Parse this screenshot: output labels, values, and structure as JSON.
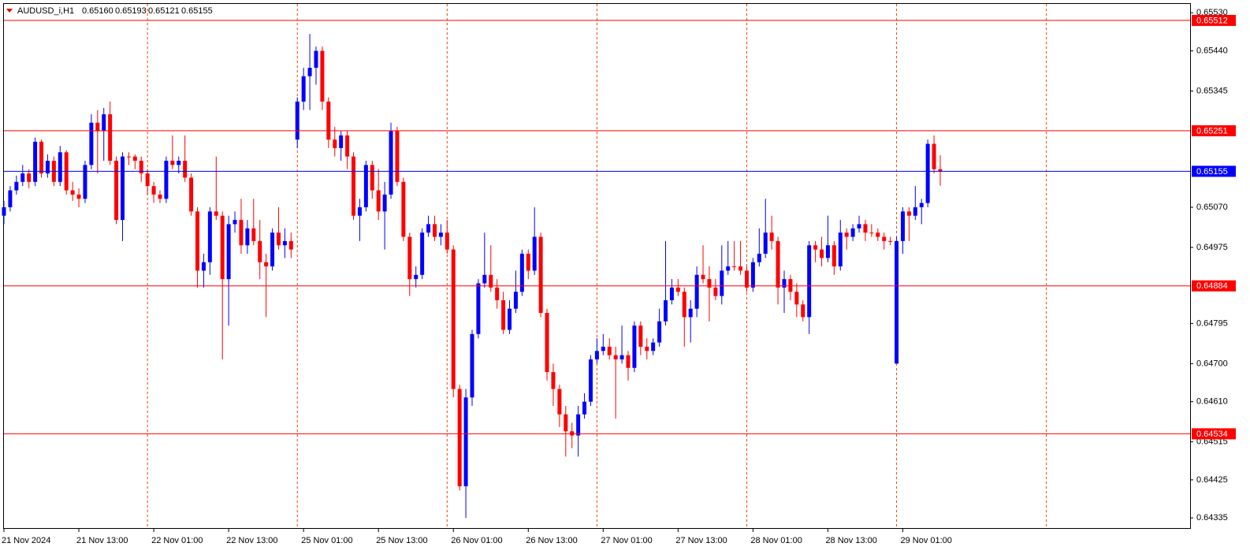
{
  "header": {
    "symbol": "AUDUSD_i,H1",
    "ohlc": [
      {
        "value": 0.6516,
        "label": "0.65160"
      },
      0.65193,
      0.65121,
      0.65155
    ]
  },
  "chart_data": {
    "type": "candlestick",
    "up_color": "#0000ff",
    "down_color": "#ff0000",
    "ylim": [
      0.64311,
      0.65551
    ],
    "yticks": [
      {
        "value": 0.6553,
        "label": "0.65530"
      },
      {
        "value": 0.6544,
        "label": "0.65440"
      },
      0.65345,
      {
        "value": 0.6507,
        "label": "0.65070"
      },
      0.64975,
      0.64795,
      {
        "value": 0.647,
        "label": "0.64700"
      },
      {
        "value": 0.6461,
        "label": "0.64610"
      },
      0.64515,
      0.64425,
      0.64335
    ],
    "levels": [
      {
        "value": 0.65512,
        "color": "#ff0000"
      },
      {
        "value": 0.65251,
        "color": "#ff0000"
      },
      {
        "value": 0.64884,
        "color": "#ff0000"
      },
      {
        "value": 0.64534,
        "color": "#ff0000"
      },
      {
        "value": 0.65155,
        "color": "#0000ff"
      }
    ],
    "categories": [
      "21 Nov 2024",
      null,
      null,
      null,
      null,
      null,
      null,
      null,
      null,
      null,
      null,
      null,
      "21 Nov 13:00",
      null,
      null,
      null,
      null,
      null,
      null,
      null,
      null,
      null,
      null,
      null,
      "22 Nov 01:00",
      null,
      null,
      null,
      null,
      null,
      null,
      null,
      null,
      null,
      null,
      null,
      "22 Nov 13:00",
      null,
      null,
      null,
      null,
      null,
      null,
      null,
      null,
      null,
      null,
      null,
      "25 Nov 01:00",
      null,
      null,
      null,
      null,
      null,
      null,
      null,
      null,
      null,
      null,
      null,
      "25 Nov 13:00",
      null,
      null,
      null,
      null,
      null,
      null,
      null,
      null,
      null,
      null,
      null,
      "26 Nov 01:00",
      null,
      null,
      null,
      null,
      null,
      null,
      null,
      null,
      null,
      null,
      null,
      "26 Nov 13:00",
      null,
      null,
      null,
      null,
      null,
      null,
      null,
      null,
      null,
      null,
      null,
      "27 Nov 01:00",
      null,
      null,
      null,
      null,
      null,
      null,
      null,
      null,
      null,
      null,
      null,
      "27 Nov 13:00",
      null,
      null,
      null,
      null,
      null,
      null,
      null,
      null,
      null,
      null,
      null,
      "28 Nov 01:00",
      null,
      null,
      null,
      null,
      null,
      null,
      null,
      null,
      null,
      null,
      null,
      "28 Nov 13:00",
      null,
      null,
      null,
      null,
      null,
      null,
      null,
      null,
      null,
      null,
      null,
      "29 Nov 01:00",
      null,
      null,
      null,
      null,
      null,
      null
    ],
    "ohlc": [
      [
        0.6505,
        0.65085,
        0.6503,
        0.6507
      ],
      [
        0.6507,
        0.6512,
        0.6506,
        0.6511
      ],
      [
        0.6511,
        0.65145,
        0.651,
        0.6513
      ],
      [
        0.6513,
        0.6517,
        0.6512,
        0.6515
      ],
      [
        0.6515,
        0.6516,
        0.65115,
        0.6513
      ],
      [
        0.6513,
        0.65235,
        0.6512,
        0.65225
      ],
      [
        0.65225,
        0.6523,
        0.6514,
        0.6515
      ],
      [
        0.6515,
        0.65195,
        0.6514,
        0.6518
      ],
      [
        0.6518,
        0.6519,
        0.6512,
        0.6513
      ],
      [
        0.6513,
        0.65215,
        0.6512,
        0.652
      ],
      [
        0.652,
        0.65205,
        0.651,
        0.6511
      ],
      [
        0.6511,
        0.6513,
        0.65085,
        0.651
      ],
      [
        0.651,
        0.65115,
        0.6507,
        0.6509
      ],
      [
        0.6509,
        0.6518,
        0.6508,
        0.6517
      ],
      [
        0.6517,
        0.6529,
        0.6516,
        0.6527
      ],
      [
        0.6527,
        0.653,
        0.6515,
        0.6525
      ],
      [
        0.6525,
        0.65305,
        0.6518,
        0.6529
      ],
      [
        0.6529,
        0.6532,
        0.6517,
        0.6518
      ],
      [
        0.6518,
        0.6519,
        0.6503,
        0.6504
      ],
      [
        0.6504,
        0.652,
        0.6499,
        0.6519
      ],
      [
        0.6519,
        0.652,
        0.6517,
        0.6519
      ],
      [
        0.6519,
        0.65195,
        0.6516,
        0.6518
      ],
      [
        0.6518,
        0.6519,
        0.6513,
        0.6515
      ],
      [
        0.6515,
        0.6516,
        0.651,
        0.6512
      ],
      [
        0.6512,
        0.6513,
        0.6508,
        0.651
      ],
      [
        0.651,
        0.6511,
        0.6508,
        0.6509
      ],
      [
        0.6509,
        0.6519,
        0.6508,
        0.6518
      ],
      [
        0.6518,
        0.6524,
        0.6516,
        0.6517
      ],
      [
        0.6517,
        0.6519,
        0.6515,
        0.6518
      ],
      [
        0.6518,
        0.6524,
        0.6513,
        0.6514
      ],
      [
        0.6514,
        0.6515,
        0.6505,
        0.6506
      ],
      [
        0.6506,
        0.6507,
        0.6488,
        0.6492
      ],
      [
        0.6492,
        0.6496,
        0.6488,
        0.6494
      ],
      [
        0.6494,
        0.6507,
        0.6491,
        0.6506
      ],
      [
        0.6506,
        0.6519,
        0.6504,
        0.6505
      ],
      [
        0.6505,
        0.6506,
        0.6471,
        0.649
      ],
      [
        0.649,
        0.6505,
        0.6479,
        0.6503
      ],
      [
        0.6503,
        0.6506,
        0.6501,
        0.6504
      ],
      [
        0.6504,
        0.6509,
        0.6496,
        0.6498
      ],
      [
        0.6498,
        0.6504,
        0.6496,
        0.6502
      ],
      [
        0.6502,
        0.6509,
        0.6498,
        0.6499
      ],
      [
        0.6499,
        0.6504,
        0.649,
        0.6494
      ],
      [
        0.6494,
        0.6496,
        0.6481,
        0.6493
      ],
      [
        0.6493,
        0.6502,
        0.6492,
        0.6501
      ],
      [
        0.6501,
        0.6507,
        0.6497,
        0.6498
      ],
      [
        0.6498,
        0.6502,
        0.6495,
        0.6499
      ],
      [
        0.6499,
        0.6501,
        0.6495,
        0.6497
      ],
      [
        0.6523,
        0.6533,
        0.6521,
        0.6532
      ],
      [
        0.6532,
        0.654,
        0.653,
        0.6538
      ],
      [
        0.6538,
        0.6548,
        0.653,
        0.654
      ],
      [
        0.654,
        0.6545,
        0.6536,
        0.6544
      ],
      [
        0.6544,
        0.6545,
        0.653,
        0.6532
      ],
      [
        0.6532,
        0.6533,
        0.6521,
        0.6523
      ],
      [
        0.6523,
        0.6526,
        0.6519,
        0.6521
      ],
      [
        0.6521,
        0.6525,
        0.6518,
        0.6524
      ],
      [
        0.6524,
        0.6525,
        0.6516,
        0.6519
      ],
      [
        0.6519,
        0.652,
        0.6504,
        0.6505
      ],
      [
        0.6505,
        0.6509,
        0.6499,
        0.6507
      ],
      [
        0.6507,
        0.6518,
        0.6506,
        0.6517
      ],
      [
        0.6517,
        0.6518,
        0.6509,
        0.6511
      ],
      [
        0.6511,
        0.6516,
        0.6504,
        0.6506
      ],
      [
        0.6506,
        0.6513,
        0.6497,
        0.651
      ],
      [
        0.651,
        0.6527,
        0.6509,
        0.6525
      ],
      [
        0.6525,
        0.6526,
        0.6512,
        0.6513
      ],
      [
        0.6513,
        0.6514,
        0.6499,
        0.65
      ],
      [
        0.65,
        0.6501,
        0.6486,
        0.649
      ],
      [
        0.649,
        0.6493,
        0.6488,
        0.6491
      ],
      [
        0.6491,
        0.6502,
        0.649,
        0.6501
      ],
      [
        0.6501,
        0.6505,
        0.65,
        0.6503
      ],
      [
        0.6503,
        0.6505,
        0.6499,
        0.65
      ],
      [
        0.65,
        0.6503,
        0.6498,
        0.6501
      ],
      [
        0.6501,
        0.6504,
        0.6496,
        0.6497
      ],
      [
        0.6497,
        0.6498,
        0.6462,
        0.6464
      ],
      [
        0.6464,
        0.6465,
        0.644,
        0.6441
      ],
      [
        0.6441,
        0.6464,
        0.64335,
        0.6462
      ],
      [
        0.6462,
        0.6478,
        0.646,
        0.6477
      ],
      [
        0.6477,
        0.649,
        0.6476,
        0.6489
      ],
      [
        0.6489,
        0.6501,
        0.6488,
        0.6491
      ],
      [
        0.6491,
        0.6498,
        0.6487,
        0.6488
      ],
      [
        0.6488,
        0.649,
        0.6483,
        0.6485
      ],
      [
        0.6485,
        0.6487,
        0.6477,
        0.6478
      ],
      [
        0.6478,
        0.6485,
        0.6477,
        0.6483
      ],
      [
        0.6483,
        0.6492,
        0.6482,
        0.6487
      ],
      [
        0.6487,
        0.6497,
        0.6486,
        0.6496
      ],
      [
        0.6496,
        0.6497,
        0.649,
        0.6492
      ],
      [
        0.6492,
        0.6507,
        0.6491,
        0.65
      ],
      [
        0.65,
        0.6501,
        0.6481,
        0.6482
      ],
      [
        0.6482,
        0.6483,
        0.6466,
        0.6468
      ],
      [
        0.6468,
        0.647,
        0.646,
        0.6464
      ],
      [
        0.6464,
        0.6465,
        0.6455,
        0.6458
      ],
      [
        0.6458,
        0.646,
        0.6448,
        0.6454
      ],
      [
        0.6454,
        0.6456,
        0.645,
        0.6453
      ],
      [
        0.6453,
        0.646,
        0.6448,
        0.6458
      ],
      [
        0.6458,
        0.6463,
        0.6457,
        0.6461
      ],
      [
        0.6461,
        0.6472,
        0.646,
        0.6471
      ],
      [
        0.6471,
        0.6476,
        0.647,
        0.6473
      ],
      [
        0.6473,
        0.6477,
        0.6472,
        0.6474
      ],
      [
        0.6474,
        0.6476,
        0.6471,
        0.6472
      ],
      [
        0.6472,
        0.6474,
        0.6457,
        0.6471
      ],
      [
        0.6471,
        0.6479,
        0.647,
        0.6472
      ],
      [
        0.6472,
        0.6473,
        0.6466,
        0.6469
      ],
      [
        0.6469,
        0.648,
        0.6468,
        0.6479
      ],
      [
        0.6479,
        0.648,
        0.6472,
        0.6474
      ],
      [
        0.6474,
        0.6476,
        0.6471,
        0.6473
      ],
      [
        0.6473,
        0.6476,
        0.6472,
        0.6475
      ],
      [
        0.6475,
        0.6483,
        0.6474,
        0.648
      ],
      [
        0.648,
        0.6499,
        0.6479,
        0.6485
      ],
      [
        0.6485,
        0.649,
        0.6484,
        0.6488
      ],
      [
        0.6488,
        0.649,
        0.6486,
        0.6487
      ],
      [
        0.6487,
        0.6488,
        0.6474,
        0.6481
      ],
      [
        0.6481,
        0.6485,
        0.6475,
        0.6483
      ],
      [
        0.6483,
        0.6493,
        0.6481,
        0.6491
      ],
      [
        0.6491,
        0.6498,
        0.6489,
        0.649
      ],
      [
        0.649,
        0.6493,
        0.648,
        0.6488
      ],
      [
        0.6488,
        0.649,
        0.6485,
        0.6486
      ],
      [
        0.6486,
        0.6498,
        0.6484,
        0.6492
      ],
      [
        0.6492,
        0.6499,
        0.6491,
        0.6493
      ],
      [
        0.6493,
        0.6499,
        0.6492,
        0.6493
      ],
      [
        0.6493,
        0.6499,
        0.6491,
        0.6492
      ],
      [
        0.6492,
        0.6493,
        0.6487,
        0.6488
      ],
      [
        0.6488,
        0.6495,
        0.6487,
        0.6494
      ],
      [
        0.6494,
        0.6502,
        0.6493,
        0.6496
      ],
      [
        0.6496,
        0.6509,
        0.6495,
        0.6501
      ],
      [
        0.6501,
        0.6505,
        0.6497,
        0.6499
      ],
      [
        0.6499,
        0.65,
        0.6484,
        0.6488
      ],
      [
        0.6488,
        0.6492,
        0.6482,
        0.649
      ],
      [
        0.649,
        0.6491,
        0.6485,
        0.6487
      ],
      [
        0.6487,
        0.6489,
        0.6481,
        0.6484
      ],
      [
        0.6484,
        0.6485,
        0.648,
        0.6481
      ],
      [
        0.6481,
        0.6499,
        0.6477,
        0.6498
      ],
      [
        0.6498,
        0.6499,
        0.6494,
        0.6497
      ],
      [
        0.6497,
        0.65,
        0.6493,
        0.6495
      ],
      [
        0.6495,
        0.6505,
        0.6494,
        0.6498
      ],
      [
        0.6498,
        0.6499,
        0.6491,
        0.6493
      ],
      [
        0.6493,
        0.6504,
        0.6492,
        0.6501
      ],
      [
        0.6501,
        0.6502,
        0.6497,
        0.65
      ],
      [
        0.65,
        0.6503,
        0.6499,
        0.6502
      ],
      [
        0.6502,
        0.6505,
        0.6501,
        0.6503
      ],
      [
        0.6503,
        0.6504,
        0.6499,
        0.6501
      ],
      [
        0.6501,
        0.6503,
        0.65,
        0.6501
      ],
      [
        0.6501,
        0.6502,
        0.6499,
        0.65
      ],
      [
        0.65,
        0.6501,
        0.6497,
        0.6499
      ],
      [
        0.6499,
        0.65,
        0.6498,
        0.6499
      ],
      [
        0.647,
        0.65,
        0.647,
        0.6499
      ],
      [
        0.6499,
        0.6507,
        0.6496,
        0.6506
      ],
      [
        0.6506,
        0.6507,
        0.6499,
        0.6505
      ],
      [
        0.6505,
        0.6512,
        0.6504,
        0.6507
      ],
      [
        0.6507,
        0.6509,
        0.6503,
        0.6508
      ],
      [
        0.6508,
        0.6523,
        0.6507,
        0.6522
      ],
      [
        0.6522,
        0.6524,
        0.6515,
        0.6516
      ],
      [
        0.6516,
        0.65193,
        0.65121,
        0.65155
      ]
    ]
  }
}
